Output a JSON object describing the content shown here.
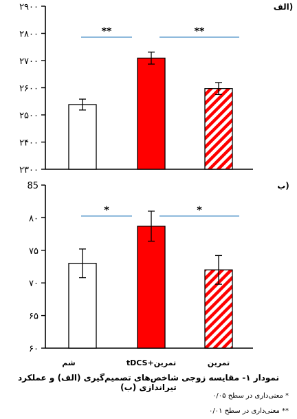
{
  "chart_data": [
    {
      "type": "bar",
      "panel_label": "الف)",
      "categories": [
        "شم",
        "تمرین+tDCS",
        "تمرین"
      ],
      "values": [
        2538,
        2709,
        2597
      ],
      "errors": [
        20,
        22,
        22
      ],
      "ylim": [
        2300,
        2900
      ],
      "yticks": [
        2300,
        2400,
        2500,
        2600,
        2700,
        2800,
        2900
      ],
      "ytick_labels": [
        "۲۳۰۰",
        "۲۴۰۰",
        "۲۵۰۰",
        "۲۶۰۰",
        "۲۷۰۰",
        "۲۸۰۰",
        "۲۹۰۰"
      ],
      "significance": [
        {
          "from": 0,
          "to": 1,
          "label": "**"
        },
        {
          "from": 1,
          "to": 2,
          "label": "**"
        }
      ]
    },
    {
      "type": "bar",
      "panel_label": "ب)",
      "categories": [
        "شم",
        "تمرین+tDCS",
        "تمرین"
      ],
      "values": [
        73.0,
        78.7,
        72.0
      ],
      "errors": [
        2.2,
        2.3,
        2.2
      ],
      "ylim": [
        60,
        85
      ],
      "yticks": [
        60,
        65,
        70,
        75,
        80,
        85
      ],
      "ytick_labels": [
        "۶۰",
        "۶۵",
        "۷۰",
        "۷۵",
        "۸۰",
        "85"
      ],
      "significance": [
        {
          "from": 0,
          "to": 1,
          "label": "*"
        },
        {
          "from": 1,
          "to": 2,
          "label": "*"
        }
      ]
    }
  ],
  "bar_styles": [
    "white",
    "red",
    "red-hatched"
  ],
  "colors": {
    "red": "#ff0000",
    "line": "#4a90c8",
    "axis": "#000000"
  },
  "category_labels": [
    "شم",
    "تمرین+tDCS",
    "تمرین"
  ],
  "caption": {
    "title": "نمودار ۱- مقایسه زوجی شاخص‌های تصمیم‌گیری (الف) و عملکرد تیراندازی (ب)",
    "note1": "* معنی‌داری در سطح ۰/۰۵",
    "note2": "** معنی‌داری در سطح ۰/۰۱"
  }
}
